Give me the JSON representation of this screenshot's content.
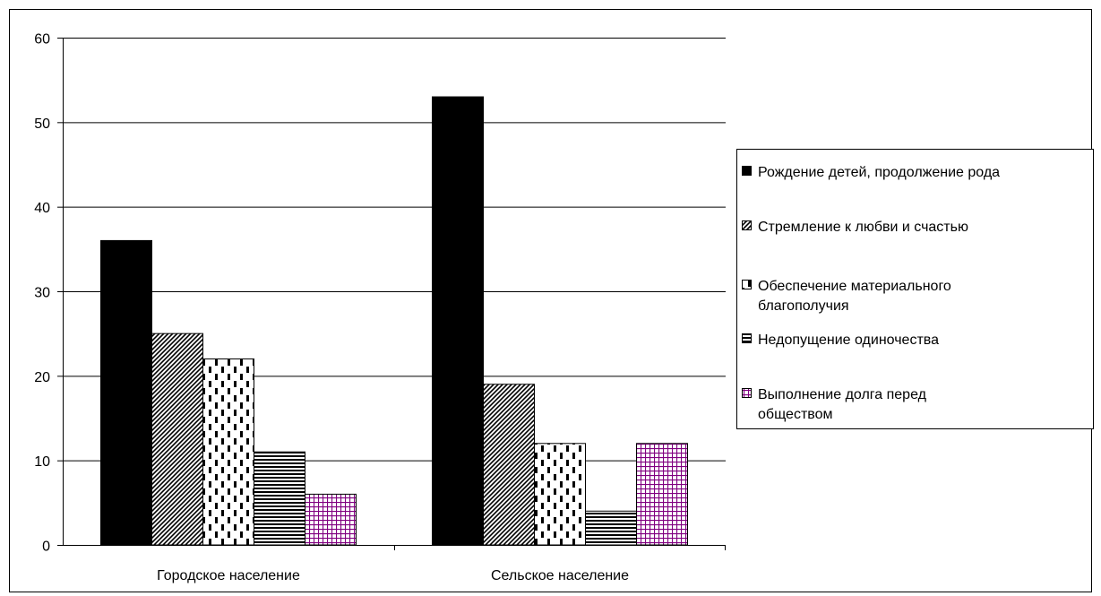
{
  "chart_data": {
    "type": "bar",
    "categories": [
      "Городское население",
      "Сельское население"
    ],
    "series": [
      {
        "name": "Рождение детей, продолжение рода",
        "values": [
          36,
          53
        ],
        "pattern": "solid"
      },
      {
        "name": "Стремление к любви и счастью",
        "values": [
          25,
          19
        ],
        "pattern": "diagonal"
      },
      {
        "name": "Обеспечение  материального благополучия",
        "values": [
          22,
          12
        ],
        "pattern": "dashes"
      },
      {
        "name": "Недопущение одиночества",
        "values": [
          11,
          4
        ],
        "pattern": "horizontal"
      },
      {
        "name": "Выполнение долга перед обществом",
        "values": [
          6,
          12
        ],
        "pattern": "grid-purple"
      }
    ],
    "yticks": [
      "0",
      "10",
      "20",
      "30",
      "40",
      "50",
      "60"
    ],
    "ylim": [
      0,
      60
    ],
    "grid": true,
    "legend_position": "right",
    "colors": {
      "bar_fill": "#000000",
      "grid_purple": "#800080",
      "gridline": "#000000"
    }
  }
}
